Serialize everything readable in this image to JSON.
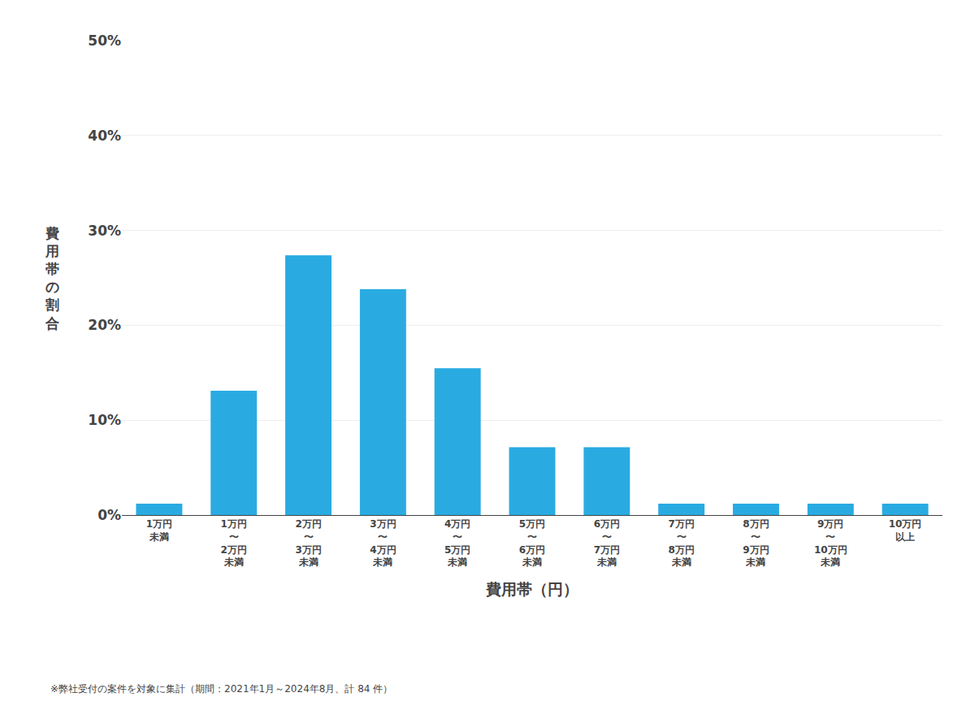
{
  "chart_data": {
    "type": "bar",
    "categories": [
      "1万円\n未満",
      "1万円\n〜\n2万円\n未満",
      "2万円\n〜\n3万円\n未満",
      "3万円\n〜\n4万円\n未満",
      "4万円\n〜\n5万円\n未満",
      "5万円\n〜\n6万円\n未満",
      "6万円\n〜\n7万円\n未満",
      "7万円\n〜\n8万円\n未満",
      "8万円\n〜\n9万円\n未満",
      "9万円\n〜\n10万円\n未満",
      "10万円\n以上"
    ],
    "values": [
      1.190476,
      13.095238,
      27.380952,
      23.809524,
      15.47619,
      7.142857,
      7.142857,
      1.190476,
      1.190476,
      1.190476,
      1.190476
    ],
    "color": "#29ABE2",
    "xlabel": "費用帯（円）",
    "ylabel": "費\n用\n帯\nの\n割\n合",
    "ylim": [
      0,
      50
    ],
    "yticks": [
      {
        "value": 0,
        "label": "0%"
      },
      {
        "value": 10,
        "label": "10%"
      },
      {
        "value": 20,
        "label": "20%"
      },
      {
        "value": 30,
        "label": "30%"
      },
      {
        "value": 40,
        "label": "40%"
      },
      {
        "value": 50,
        "label": "50%"
      }
    ],
    "grid": true,
    "annotations": [
      "※弊社受付の案件を対象に集計（期間：2021年1月～2024年8月、計 84 件）"
    ]
  }
}
